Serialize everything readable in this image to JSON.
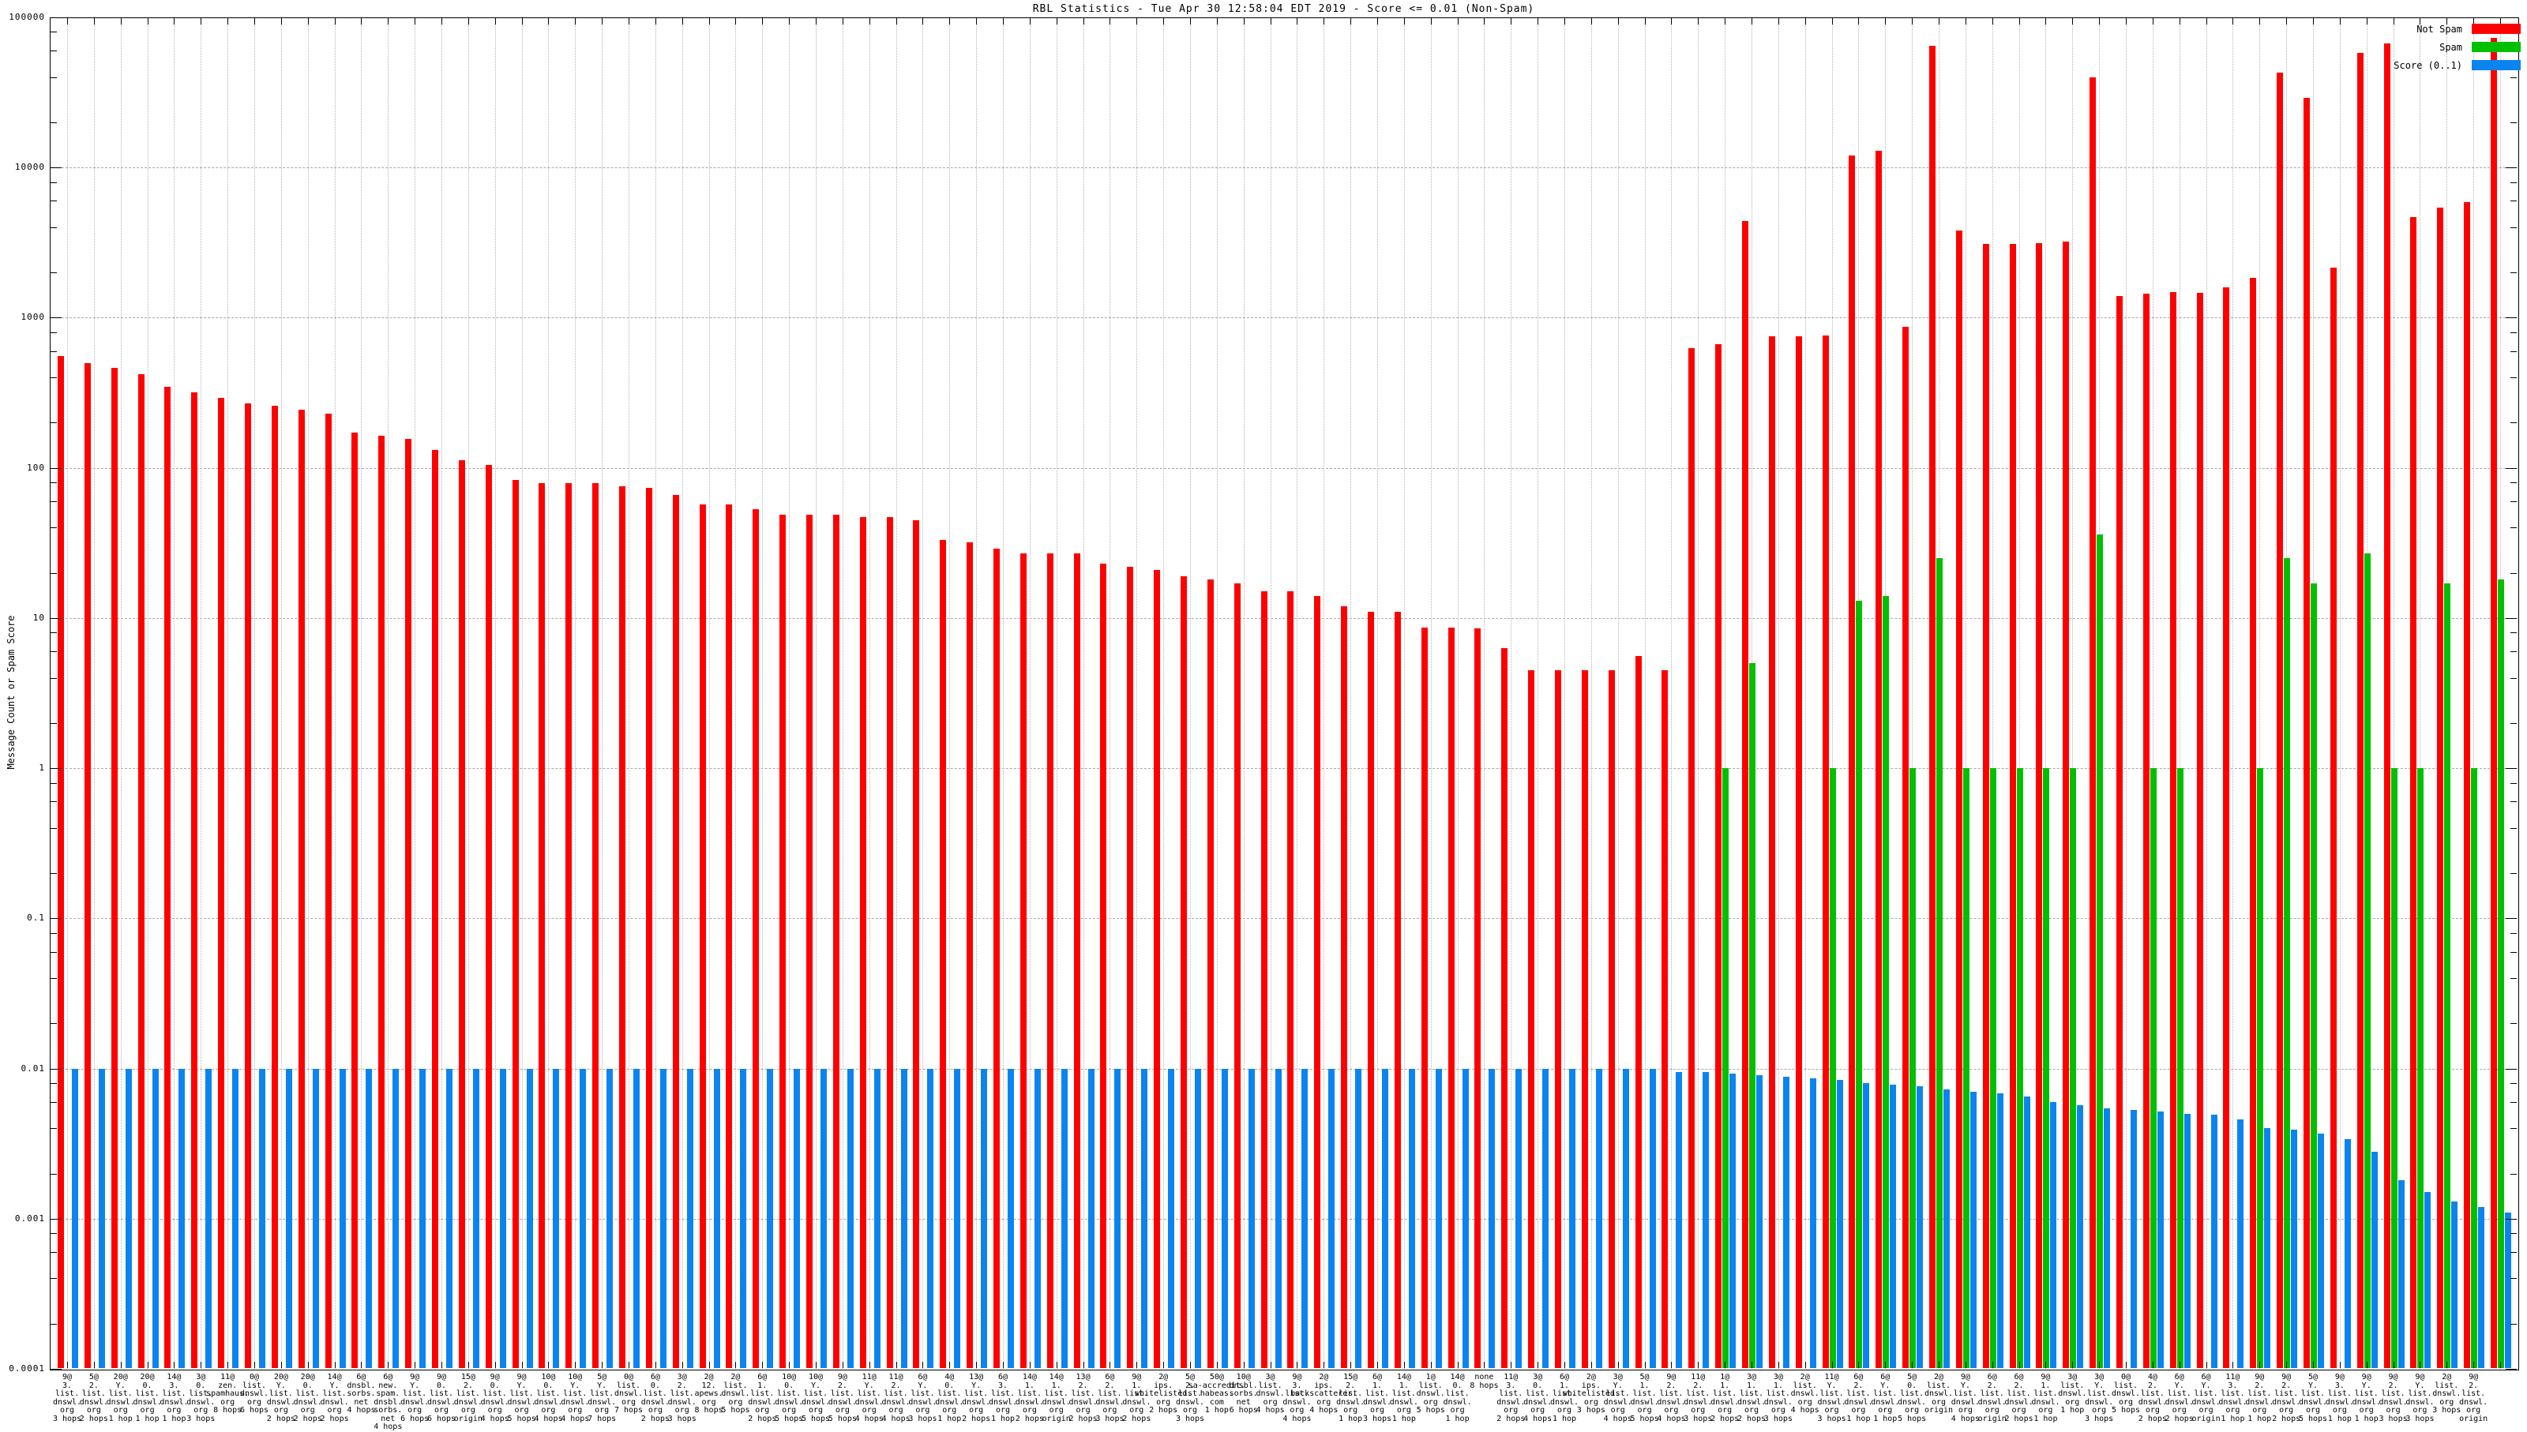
{
  "chart_data": {
    "type": "bar",
    "title": "RBL Statistics - Tue Apr 30 12:58:04 EDT 2019 - Score <= 0.01 (Non-Spam)",
    "ylabel": "Message Count or Spam Score",
    "y_scale": "log",
    "ylim": [
      0.0001,
      100000
    ],
    "yticks": [
      "100000",
      "10000",
      "1000",
      "100",
      "10",
      "1",
      "0.1",
      "0.01",
      "0.001",
      "0.0001"
    ],
    "grid": true,
    "legend_position": "top-right",
    "colors": {
      "not_spam": "#ff0000",
      "spam": "#00c000",
      "score": "#0b84f0"
    },
    "legend": {
      "not_spam": "Not Spam",
      "spam": "Spam",
      "score": "Score (0..1)"
    },
    "categories": [
      "9@|3.|list.|dnswl.|org|3 hops",
      "5@|2.|list.|dnswl.|org|2 hops",
      "20@|Y.|list.|dnswl.|org|1 hop",
      "20@|0.|list.|dnswl.|org|1 hop",
      "14@|3.|list.|dnswl.|org|1 hop",
      "3@|0.|list.|dnswl.|org|3 hops",
      "11@|zen.|spamhaus.|org|8 hops",
      "0@|list.|dnswl.|org|6 hops",
      "20@|Y.|list.|dnswl.|org|2 hops",
      "20@|0.|list.|dnswl.|org|2 hops",
      "14@|Y.|list.|dnswl.|org|2 hops",
      "6@|dnsbl.|sorbs.|net|4 hops",
      "6@|new.|spam.|dnsbl.|sorbs.|net|4 hops",
      "9@|Y.|list.|dnswl.|org|6 hops",
      "9@|0.|list.|dnswl.|org|6 hops",
      "15@|2.|list.|dnswl.|org|origin",
      "9@|0.|list.|dnswl.|org|4 hops",
      "9@|Y.|list.|dnswl.|org|5 hops",
      "10@|0.|list.|dnswl.|org|4 hops",
      "10@|Y.|list.|dnswl.|org|4 hops",
      "5@|Y.|list.|dnswl.|org|7 hops",
      "0@|list.|dnswl.|org|7 hops",
      "6@|0.|list.|dnswl.|org|2 hops",
      "3@|2.|list.|dnswl.|org|3 hops",
      "2@|12.|apews.|org|8 hops",
      "2@|list.|dnswl.|org|5 hops",
      "6@|1.|list.|dnswl.|org|2 hops",
      "10@|0.|list.|dnswl.|org|5 hops",
      "10@|Y.|list.|dnswl.|org|5 hops",
      "9@|2.|list.|dnswl.|org|5 hops",
      "11@|Y.|list.|dnswl.|org|4 hops",
      "11@|2.|list.|dnswl.|org|4 hops",
      "6@|Y.|list.|dnswl.|org|3 hops",
      "4@|0.|list.|dnswl.|org|1 hop",
      "13@|Y.|list.|dnswl.|org|2 hops",
      "6@|3.|list.|dnswl.|org|1 hop",
      "14@|1.|list.|dnswl.|org|2 hops",
      "14@|1.|list.|dnswl.|org|origin",
      "13@|2.|list.|dnswl.|org|2 hops",
      "6@|2.|list.|dnswl.|org|3 hops",
      "9@|1.|list.|dnswl.|org|2 hops",
      "2@|ips.|whitelisted.|org|2 hops",
      "5@|2.|list.|dnswl.|org|3 hops",
      "50@|sa-accredit.|habeas.|com|1 hop",
      "10@|dnsbl.|sorbs.|net|6 hops",
      "3@|list.|dnswl.|org|4 hops",
      "9@|3.|list.|dnswl.|org|4 hops",
      "2@|ips.|backscatterer.|org|4 hops",
      "15@|2.|list.|dnswl.|org|1 hop",
      "6@|1.|list.|dnswl.|org|3 hops",
      "14@|1.|list.|dnswl.|org|1 hop",
      "1@|list.|dnswl.|org|5 hops",
      "14@|0.|list.|dnswl.|org|1 hop",
      "none|8 hops",
      "11@|3.|list.|dnswl.|org|2 hops",
      "3@|0.|list.|dnswl.|org|4 hops",
      "6@|1.|list.|dnswl.|org|1 hop",
      "2@|ips.|whitelisted.|org|3 hops",
      "3@|Y.|list.|dnswl.|org|4 hops",
      "5@|1.|list.|dnswl.|org|5 hops",
      "9@|2.|list.|dnswl.|org|4 hops",
      "11@|2.|list.|dnswl.|org|3 hops",
      "1@|1.|list.|dnswl.|org|2 hops",
      "3@|1.|list.|dnswl.|org|2 hops",
      "3@|1.|list.|dnswl.|org|3 hops",
      "2@|list.|dnswl.|org|4 hops",
      "11@|Y.|list.|dnswl.|org|3 hops",
      "6@|2.|list.|dnswl.|org|1 hop",
      "6@|Y.|list.|dnswl.|org|1 hop",
      "5@|0.|list.|dnswl.|org|5 hops",
      "2@|list.|dnswl.|org|origin",
      "9@|Y.|list.|dnswl.|org|4 hops",
      "6@|2.|list.|dnswl.|org|origin",
      "6@|2.|list.|dnswl.|org|2 hops",
      "9@|1.|list.|dnswl.|org|1 hop",
      "3@|list.|dnswl.|org|1 hop",
      "3@|Y.|list.|dnswl.|org|3 hops",
      "0@|list.|dnswl.|org|5 hops",
      "4@|2.|list.|dnswl.|org|2 hops",
      "6@|Y.|list.|dnswl.|org|2 hops",
      "6@|Y.|list.|dnswl.|org|origin",
      "11@|3.|list.|dnswl.|org|1 hop",
      "9@|2.|list.|dnswl.|org|1 hop",
      "9@|2.|list.|dnswl.|org|2 hops",
      "5@|Y.|list.|dnswl.|org|5 hops",
      "9@|3.|list.|dnswl.|org|1 hop",
      "9@|Y.|list.|dnswl.|org|1 hop",
      "9@|2.|list.|dnswl.|org|3 hops",
      "9@|Y.|list.|dnswl.|org|3 hops",
      "2@|list.|dnswl.|org|3 hops",
      "9@|2.|list.|dnswl.|org|origin",
      ""
    ],
    "series": [
      {
        "name": "Not Spam",
        "values": [
          558,
          496,
          462,
          423,
          345,
          320,
          294,
          270,
          258,
          243,
          230,
          172,
          164,
          155,
          131,
          113,
          105,
          83,
          79,
          79,
          79,
          75,
          74,
          66,
          57,
          57,
          53,
          49,
          49,
          49,
          47,
          47,
          45,
          33,
          32,
          29,
          27,
          27,
          27,
          23,
          22,
          21,
          19,
          18,
          17,
          15,
          15,
          14,
          12,
          11,
          11,
          8.6,
          8.6,
          8.5,
          6.3,
          4.5,
          4.5,
          4.5,
          4.5,
          5.6,
          4.5,
          630,
          665,
          4400,
          750,
          750,
          760,
          12000,
          13000,
          870,
          65000,
          3800,
          3100,
          3100,
          3150,
          3200,
          40000,
          1400,
          1450,
          1480,
          1470,
          1600,
          1850,
          43000,
          29000,
          2150,
          58000,
          67000,
          4700,
          5400,
          5900,
          73000
        ]
      },
      {
        "name": "Spam",
        "values": [
          0,
          0,
          0,
          0,
          0,
          0,
          0,
          0,
          0,
          0,
          0,
          0,
          0,
          0,
          0,
          0,
          0,
          0,
          0,
          0,
          0,
          0,
          0,
          0,
          0,
          0,
          0,
          0,
          0,
          0,
          0,
          0,
          0,
          0,
          0,
          0,
          0,
          0,
          0,
          0,
          0,
          0,
          0,
          0,
          0,
          0,
          0,
          0,
          0,
          0,
          0,
          0,
          0,
          0,
          0,
          0,
          0,
          0,
          0,
          0,
          0,
          0,
          1,
          5,
          0,
          0,
          1,
          13,
          14,
          1,
          25,
          1,
          1,
          1,
          1,
          1,
          36,
          0,
          1,
          1,
          0,
          0,
          1,
          25,
          17,
          0,
          27,
          1,
          1,
          17,
          1,
          18
        ]
      },
      {
        "name": "Score (0..1)",
        "values": [
          0.01,
          0.01,
          0.01,
          0.01,
          0.01,
          0.01,
          0.01,
          0.01,
          0.01,
          0.01,
          0.01,
          0.01,
          0.01,
          0.01,
          0.01,
          0.01,
          0.01,
          0.01,
          0.01,
          0.01,
          0.01,
          0.01,
          0.01,
          0.01,
          0.01,
          0.01,
          0.01,
          0.01,
          0.01,
          0.01,
          0.01,
          0.01,
          0.01,
          0.01,
          0.01,
          0.01,
          0.01,
          0.01,
          0.01,
          0.01,
          0.01,
          0.01,
          0.01,
          0.01,
          0.01,
          0.01,
          0.01,
          0.01,
          0.01,
          0.01,
          0.01,
          0.01,
          0.01,
          0.01,
          0.01,
          0.01,
          0.01,
          0.01,
          0.01,
          0.01,
          0.0095,
          0.0095,
          0.0092,
          0.009,
          0.0088,
          0.0086,
          0.0084,
          0.008,
          0.0078,
          0.0076,
          0.0073,
          0.007,
          0.0068,
          0.0065,
          0.006,
          0.0057,
          0.0054,
          0.0053,
          0.0052,
          0.005,
          0.0049,
          0.0046,
          0.004,
          0.0039,
          0.0037,
          0.0034,
          0.0028,
          0.0018,
          0.0015,
          0.0013,
          0.0012,
          0.0011
        ]
      }
    ]
  }
}
